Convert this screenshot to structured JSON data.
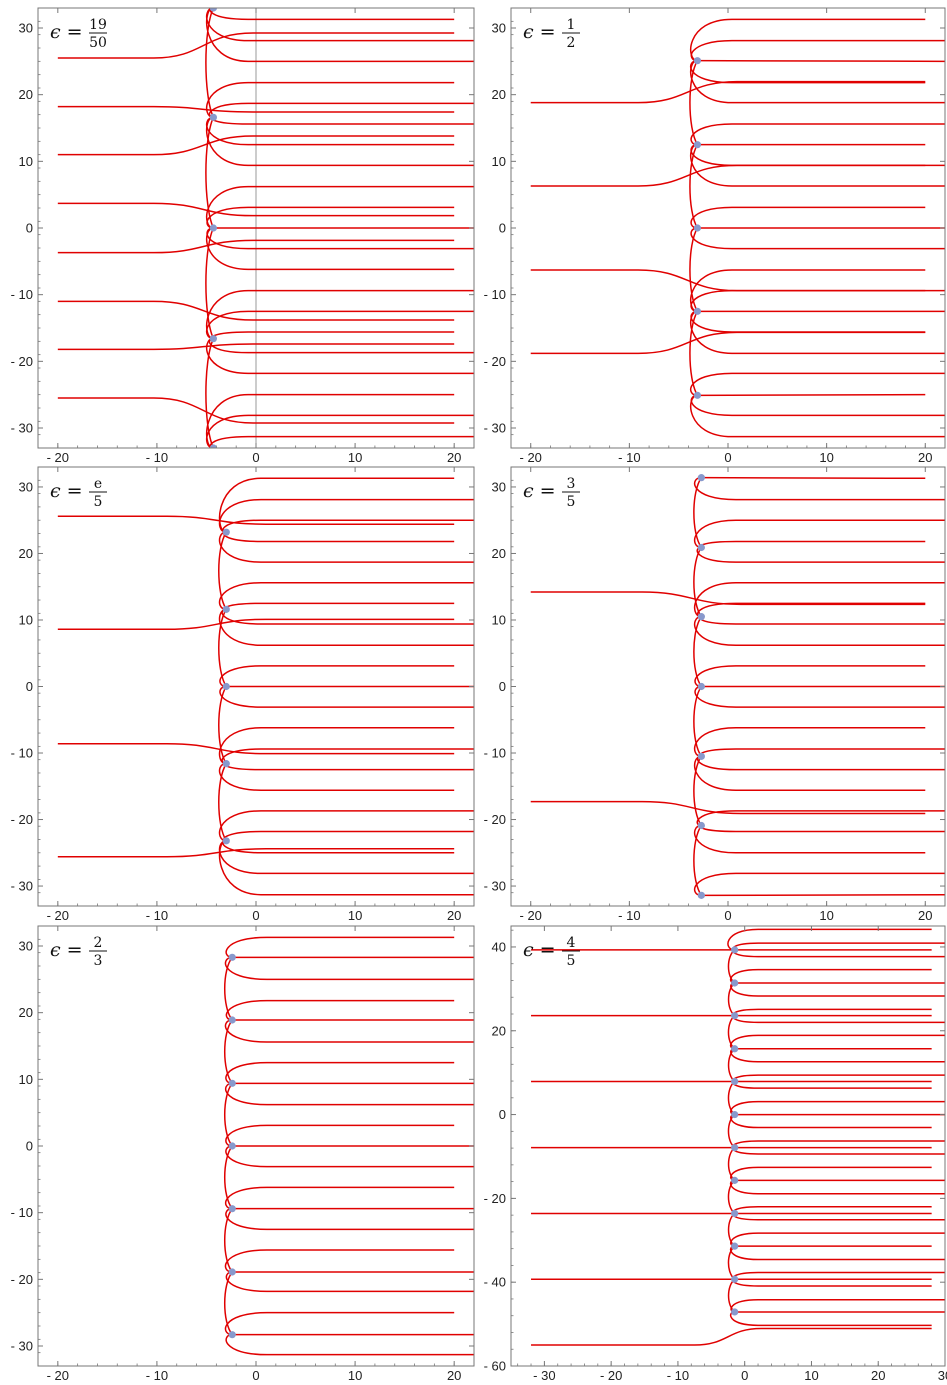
{
  "figure": {
    "curve_color": "#e00000",
    "point_color": "#8899cc",
    "frame_color": "#777777",
    "axis_line_color": "#999999"
  },
  "chart_data": [
    {
      "type": "line",
      "label_prefix": "ϵ =",
      "label_numerator": "19",
      "label_denominator": "50",
      "xlim": [
        -22,
        22
      ],
      "ylim": [
        -33,
        33
      ],
      "xticks": [
        -20,
        -10,
        0,
        10,
        20
      ],
      "yticks": [
        -30,
        -20,
        -10,
        0,
        10,
        20,
        30
      ],
      "xtick_labels": [
        "- 20",
        "- 10",
        "0",
        "10",
        "20"
      ],
      "ytick_labels": [
        "- 30",
        "- 20",
        "- 10",
        "0",
        "10",
        "20",
        "30"
      ],
      "show_vertical_axis": true,
      "points": [
        {
          "x": -4.3,
          "y": 0
        },
        {
          "x": -4.3,
          "y": 16.6
        },
        {
          "x": -4.3,
          "y": -16.6
        },
        {
          "x": -4.3,
          "y": 33
        },
        {
          "x": -4.3,
          "y": -33
        }
      ],
      "left_lines": [
        25.5,
        18.2,
        11.0,
        3.7,
        -3.7,
        -11.0,
        -18.2,
        -25.5
      ],
      "right_lines": [
        31.3,
        28.1,
        25.0,
        21.8,
        18.7,
        15.6,
        12.5,
        9.4,
        6.2,
        3.1,
        0,
        -3.1,
        -6.2,
        -9.4,
        -12.5,
        -15.6,
        -18.7,
        -21.8,
        -25.0,
        -28.1,
        -31.3
      ]
    },
    {
      "type": "line",
      "label_prefix": "ϵ =",
      "label_numerator": "1",
      "label_denominator": "2",
      "xlim": [
        -22,
        22
      ],
      "ylim": [
        -33,
        33
      ],
      "xticks": [
        -20,
        -10,
        0,
        10,
        20
      ],
      "yticks": [
        -30,
        -20,
        -10,
        0,
        10,
        20,
        30
      ],
      "xtick_labels": [
        "- 20",
        "- 10",
        "0",
        "10",
        "20"
      ],
      "ytick_labels": [
        "- 30",
        "- 20",
        "- 10",
        "0",
        "10",
        "20",
        "30"
      ],
      "show_vertical_axis": false,
      "points": [
        {
          "x": -3.1,
          "y": 25.1
        },
        {
          "x": -3.1,
          "y": 12.5
        },
        {
          "x": -3.1,
          "y": 0
        },
        {
          "x": -3.1,
          "y": -12.5
        },
        {
          "x": -3.1,
          "y": -25.1
        }
      ],
      "left_lines": [
        18.8,
        6.3,
        -6.3,
        -18.8
      ],
      "right_lines": [
        31.3,
        28.1,
        25.0,
        21.8,
        18.8,
        15.6,
        12.5,
        9.4,
        6.3,
        3.1,
        0,
        -3.1,
        -6.3,
        -9.4,
        -12.5,
        -15.6,
        -18.8,
        -21.8,
        -25.0,
        -28.1,
        -31.3
      ]
    },
    {
      "type": "line",
      "label_prefix": "ϵ =",
      "label_numerator": "e",
      "label_denominator": "5",
      "xlim": [
        -22,
        22
      ],
      "ylim": [
        -33,
        33
      ],
      "xticks": [
        -20,
        -10,
        0,
        10,
        20
      ],
      "yticks": [
        -30,
        -20,
        -10,
        0,
        10,
        20,
        30
      ],
      "xtick_labels": [
        "- 20",
        "- 10",
        "0",
        "10",
        "20"
      ],
      "ytick_labels": [
        "- 30",
        "- 20",
        "- 10",
        "0",
        "10",
        "20",
        "30"
      ],
      "show_vertical_axis": false,
      "points": [
        {
          "x": -3.0,
          "y": 23.2
        },
        {
          "x": -3.0,
          "y": 11.6
        },
        {
          "x": -3.0,
          "y": 0
        },
        {
          "x": -3.0,
          "y": -11.6
        },
        {
          "x": -3.0,
          "y": -23.2
        }
      ],
      "left_lines": [
        25.6,
        8.6,
        -8.6,
        -25.6
      ],
      "right_lines": [
        31.3,
        28.1,
        25.0,
        21.8,
        18.7,
        15.6,
        12.5,
        9.4,
        6.2,
        3.1,
        0,
        -3.1,
        -6.2,
        -9.4,
        -12.5,
        -15.6,
        -18.7,
        -21.8,
        -25.0,
        -28.1,
        -31.3
      ]
    },
    {
      "type": "line",
      "label_prefix": "ϵ =",
      "label_numerator": "3",
      "label_denominator": "5",
      "xlim": [
        -22,
        22
      ],
      "ylim": [
        -33,
        33
      ],
      "xticks": [
        -20,
        -10,
        0,
        10,
        20
      ],
      "yticks": [
        -30,
        -20,
        -10,
        0,
        10,
        20,
        30
      ],
      "xtick_labels": [
        "- 20",
        "- 10",
        "0",
        "10",
        "20"
      ],
      "ytick_labels": [
        "- 30",
        "- 20",
        "- 10",
        "0",
        "10",
        "20",
        "30"
      ],
      "show_vertical_axis": false,
      "points": [
        {
          "x": -2.7,
          "y": 31.4
        },
        {
          "x": -2.7,
          "y": 20.9
        },
        {
          "x": -2.7,
          "y": 10.5
        },
        {
          "x": -2.7,
          "y": 0
        },
        {
          "x": -2.7,
          "y": -10.5
        },
        {
          "x": -2.7,
          "y": -20.9
        },
        {
          "x": -2.7,
          "y": -31.4
        }
      ],
      "left_lines": [
        14.2,
        -17.3
      ],
      "right_lines": [
        31.3,
        28.1,
        25.0,
        21.8,
        18.7,
        15.6,
        12.5,
        9.4,
        6.2,
        3.1,
        0,
        -3.1,
        -6.2,
        -9.4,
        -12.5,
        -15.6,
        -18.7,
        -21.8,
        -25.0,
        -28.1,
        -31.3
      ]
    },
    {
      "type": "line",
      "label_prefix": "ϵ =",
      "label_numerator": "2",
      "label_denominator": "3",
      "xlim": [
        -22,
        22
      ],
      "ylim": [
        -33,
        33
      ],
      "xticks": [
        -20,
        -10,
        0,
        10,
        20
      ],
      "yticks": [
        -30,
        -20,
        -10,
        0,
        10,
        20,
        30
      ],
      "xtick_labels": [
        "- 20",
        "- 10",
        "0",
        "10",
        "20"
      ],
      "ytick_labels": [
        "- 30",
        "- 20",
        "- 10",
        "0",
        "10",
        "20",
        "30"
      ],
      "show_vertical_axis": false,
      "points": [
        {
          "x": -2.4,
          "y": 28.3
        },
        {
          "x": -2.4,
          "y": 18.9
        },
        {
          "x": -2.4,
          "y": 9.4
        },
        {
          "x": -2.4,
          "y": 0
        },
        {
          "x": -2.4,
          "y": -9.4
        },
        {
          "x": -2.4,
          "y": -18.9
        },
        {
          "x": -2.4,
          "y": -28.3
        }
      ],
      "left_lines": [],
      "right_lines": [
        31.3,
        28.3,
        25.0,
        21.8,
        18.9,
        15.6,
        12.5,
        9.4,
        6.2,
        3.1,
        0,
        -3.1,
        -6.2,
        -9.4,
        -12.5,
        -15.6,
        -18.9,
        -21.8,
        -25.0,
        -28.3,
        -31.3
      ]
    },
    {
      "type": "line",
      "label_prefix": "ϵ =",
      "label_numerator": "4",
      "label_denominator": "5",
      "xlim": [
        -35,
        30
      ],
      "ylim": [
        -60,
        45
      ],
      "xticks": [
        -30,
        -20,
        -10,
        0,
        10,
        20,
        30
      ],
      "yticks": [
        -60,
        -40,
        -20,
        0,
        20,
        40
      ],
      "xtick_labels": [
        "- 30",
        "- 20",
        "- 10",
        "0",
        "10",
        "20",
        "30"
      ],
      "ytick_labels": [
        "- 60",
        "- 40",
        "- 20",
        "0",
        "20",
        "40"
      ],
      "show_vertical_axis": false,
      "points": [
        {
          "x": -1.5,
          "y": 39.3
        },
        {
          "x": -1.5,
          "y": 31.4
        },
        {
          "x": -1.5,
          "y": 23.6
        },
        {
          "x": -1.5,
          "y": 15.7
        },
        {
          "x": -1.5,
          "y": 7.9
        },
        {
          "x": -1.5,
          "y": 0
        },
        {
          "x": -1.5,
          "y": -7.9
        },
        {
          "x": -1.5,
          "y": -15.7
        },
        {
          "x": -1.5,
          "y": -23.6
        },
        {
          "x": -1.5,
          "y": -31.4
        },
        {
          "x": -1.5,
          "y": -39.3
        },
        {
          "x": -1.5,
          "y": -47.1
        }
      ],
      "left_lines": [
        39.3,
        23.6,
        7.9,
        -7.9,
        -23.6,
        -39.3,
        -55.0
      ],
      "right_lines": [
        44.2,
        40.9,
        37.7,
        34.6,
        31.4,
        28.3,
        25.1,
        22.0,
        18.9,
        15.7,
        12.6,
        9.4,
        6.3,
        3.1,
        0,
        -3.1,
        -6.3,
        -9.4,
        -12.6,
        -15.7,
        -18.9,
        -22.0,
        -25.1,
        -28.3,
        -31.4,
        -34.6,
        -37.7,
        -40.9,
        -44.2,
        -47.1,
        -50.3
      ]
    }
  ]
}
